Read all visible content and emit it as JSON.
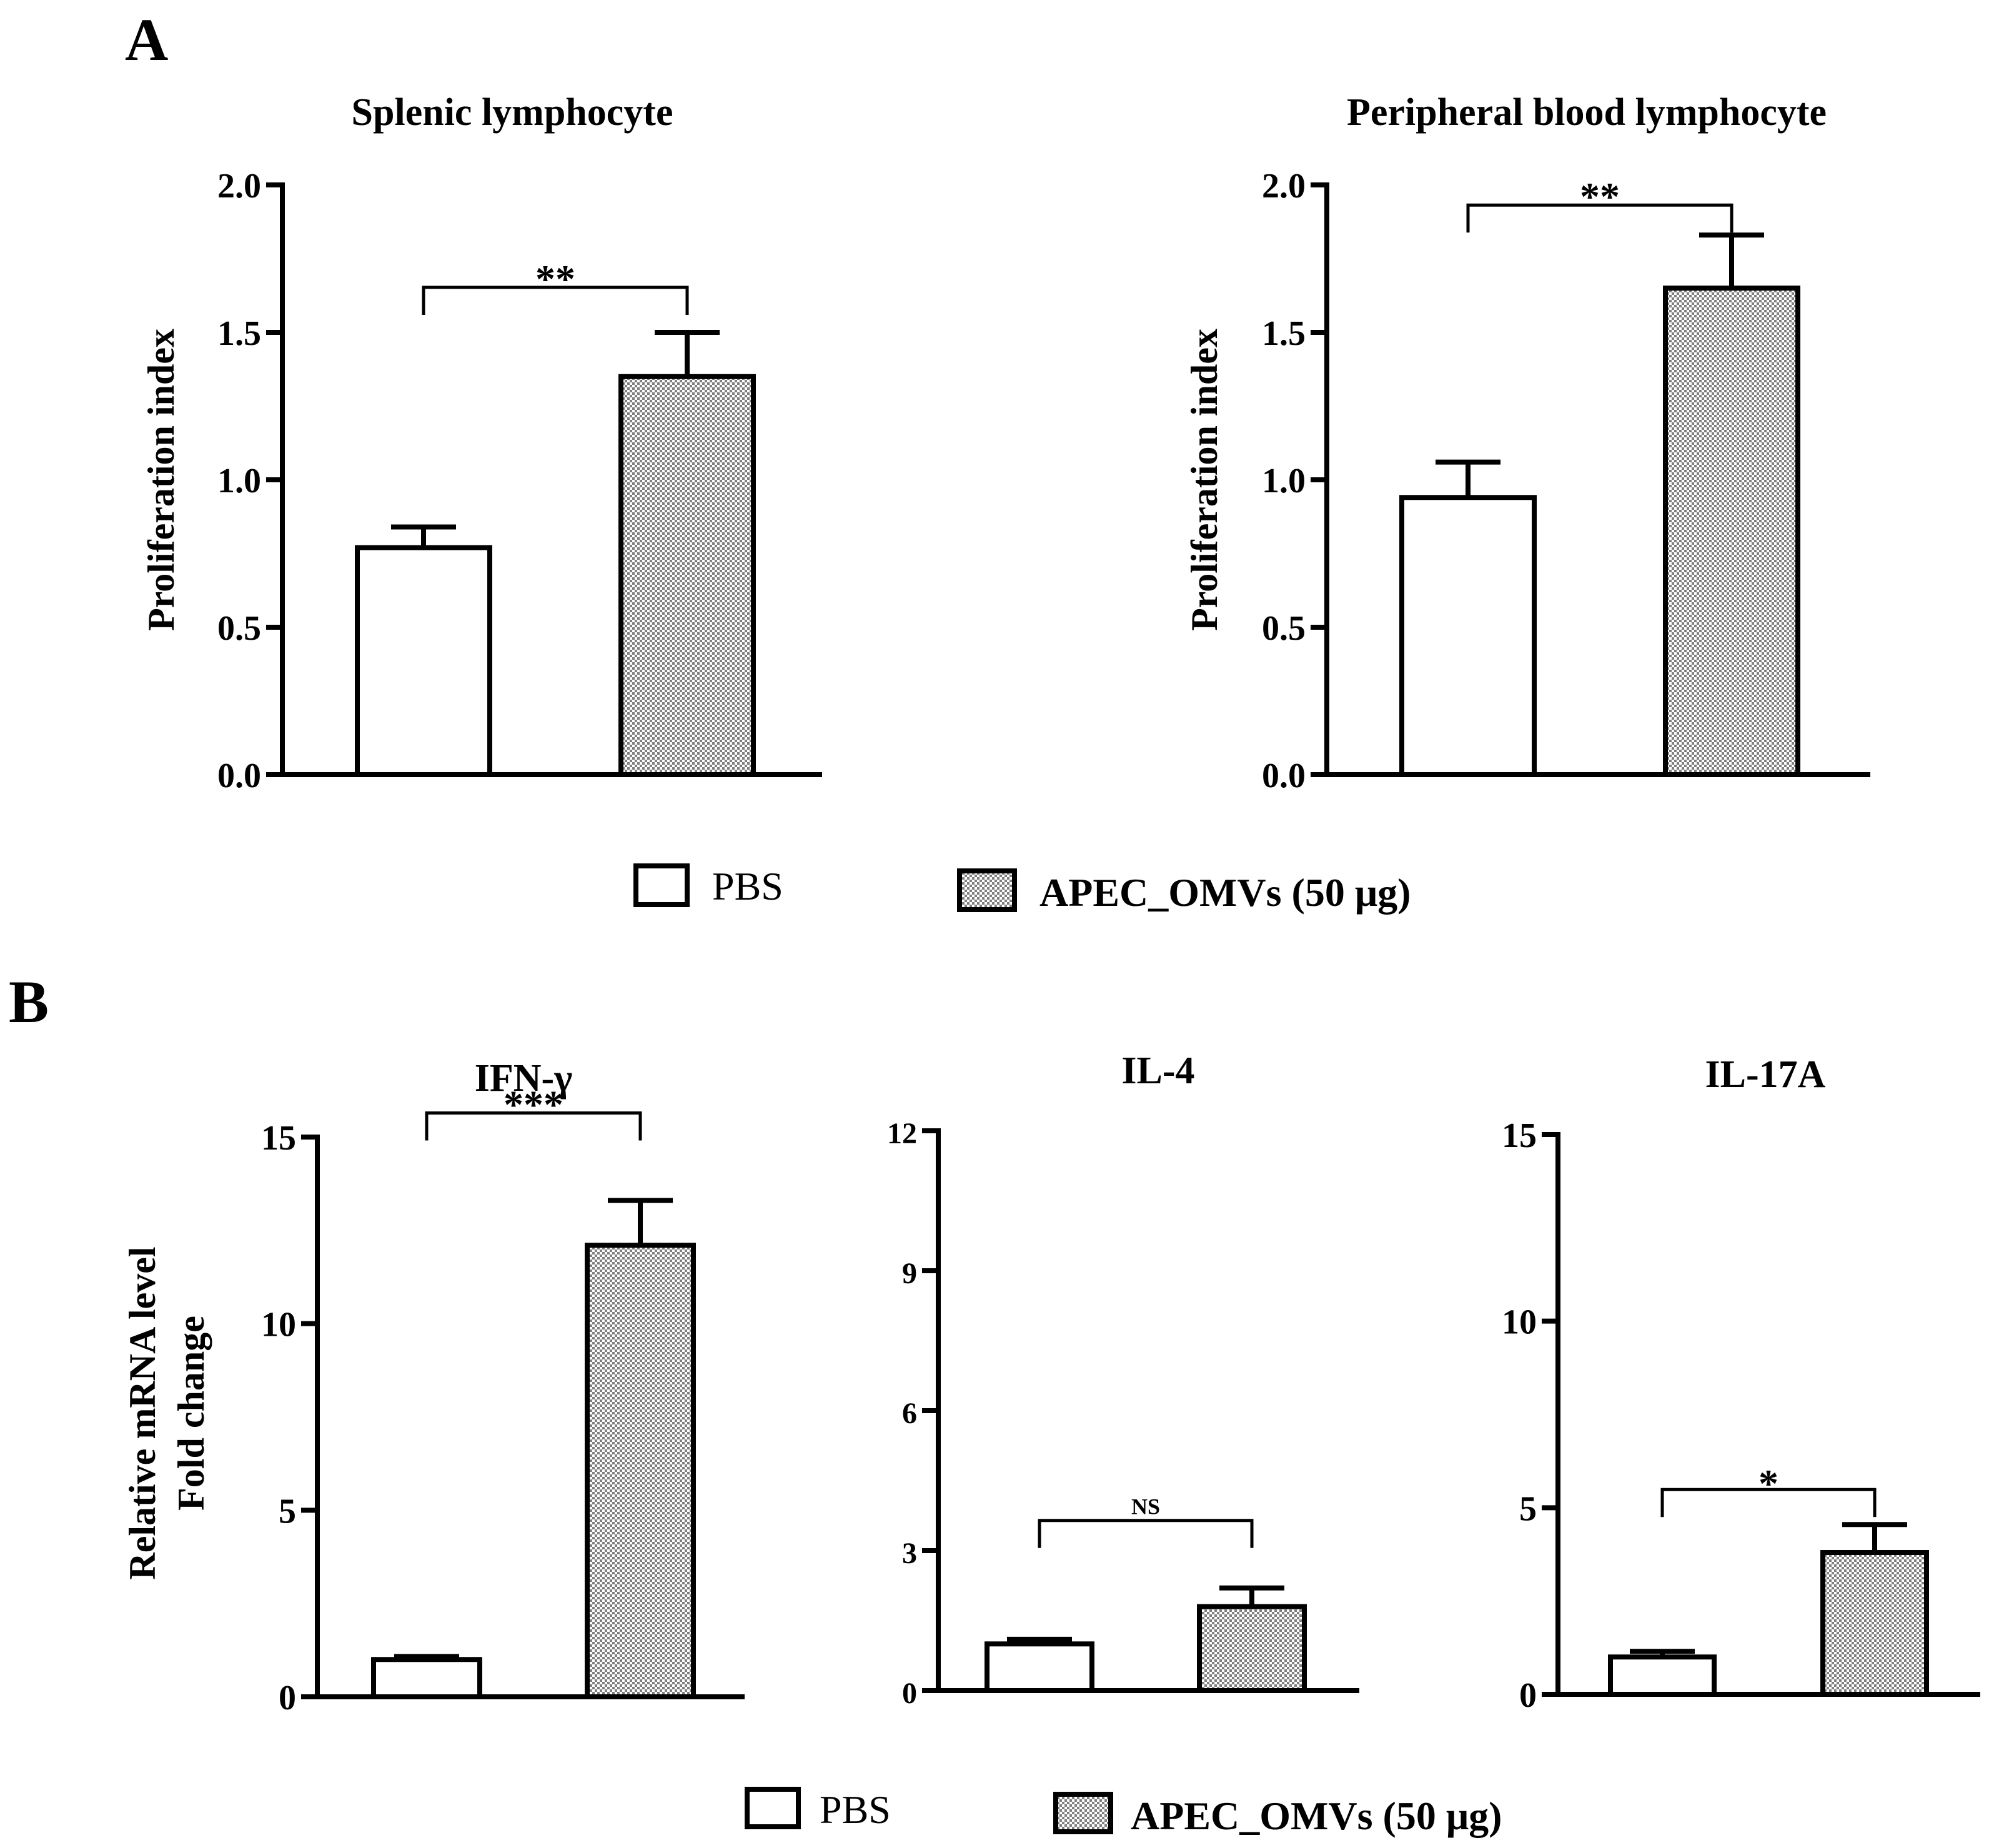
{
  "panel_labels": [
    "A",
    "B"
  ],
  "colors": {
    "pbs": "#ffffff",
    "omv_pattern": "#9a9a9a",
    "stroke": "#000000"
  },
  "legend": {
    "pbs": "PBS",
    "omv": "APEC_OMVs (50 μg)"
  },
  "chart_data": [
    {
      "type": "bar",
      "title": "Splenic lymphocyte",
      "categories": [
        "PBS",
        "APEC_OMVs (50 μg)"
      ],
      "values": [
        0.77,
        1.35
      ],
      "errors": [
        0.07,
        0.15
      ],
      "ylabel": "Proliferation index",
      "ylim": [
        0,
        2.0
      ],
      "yticks": [
        0.0,
        0.5,
        1.0,
        1.5,
        2.0
      ],
      "ytick_labels": [
        "0.0",
        "0.5",
        "1.0",
        "1.5",
        "2.0"
      ],
      "significance": "**"
    },
    {
      "type": "bar",
      "title": "Peripheral blood lymphocyte",
      "categories": [
        "PBS",
        "APEC_OMVs (50 μg)"
      ],
      "values": [
        0.94,
        1.65
      ],
      "errors": [
        0.12,
        0.18
      ],
      "ylabel": "Proliferation index",
      "ylim": [
        0,
        2.0
      ],
      "yticks": [
        0.0,
        0.5,
        1.0,
        1.5,
        2.0
      ],
      "ytick_labels": [
        "0.0",
        "0.5",
        "1.0",
        "1.5",
        "2.0"
      ],
      "significance": "**"
    },
    {
      "type": "bar",
      "title": "IFN-γ",
      "categories": [
        "PBS",
        "APEC_OMVs (50 μg)"
      ],
      "values": [
        1.0,
        12.1
      ],
      "errors": [
        0.08,
        1.2
      ],
      "ylabel": "Relative mRNA level Fold change",
      "ylabel_lines": [
        "Relative mRNA level",
        "Fold change"
      ],
      "ylim": [
        0,
        15
      ],
      "yticks": [
        0,
        5,
        10,
        15
      ],
      "ytick_labels": [
        "0",
        "5",
        "10",
        "15"
      ],
      "significance": "***"
    },
    {
      "type": "bar",
      "title": "IL-4",
      "categories": [
        "PBS",
        "APEC_OMVs (50 μg)"
      ],
      "values": [
        1.0,
        1.8
      ],
      "errors": [
        0.1,
        0.4
      ],
      "ylabel": "",
      "ylim": [
        0,
        12
      ],
      "yticks": [
        0,
        3,
        6,
        9,
        12
      ],
      "ytick_labels": [
        "0",
        "3",
        "6",
        "9",
        "12"
      ],
      "significance": "NS"
    },
    {
      "type": "bar",
      "title": "IL-17A",
      "categories": [
        "PBS",
        "APEC_OMVs (50 μg)"
      ],
      "values": [
        1.0,
        3.8
      ],
      "errors": [
        0.15,
        0.75
      ],
      "ylabel": "",
      "ylim": [
        0,
        15
      ],
      "yticks": [
        0,
        5,
        10,
        15
      ],
      "ytick_labels": [
        "0",
        "5",
        "10",
        "15"
      ],
      "significance": "*"
    }
  ]
}
